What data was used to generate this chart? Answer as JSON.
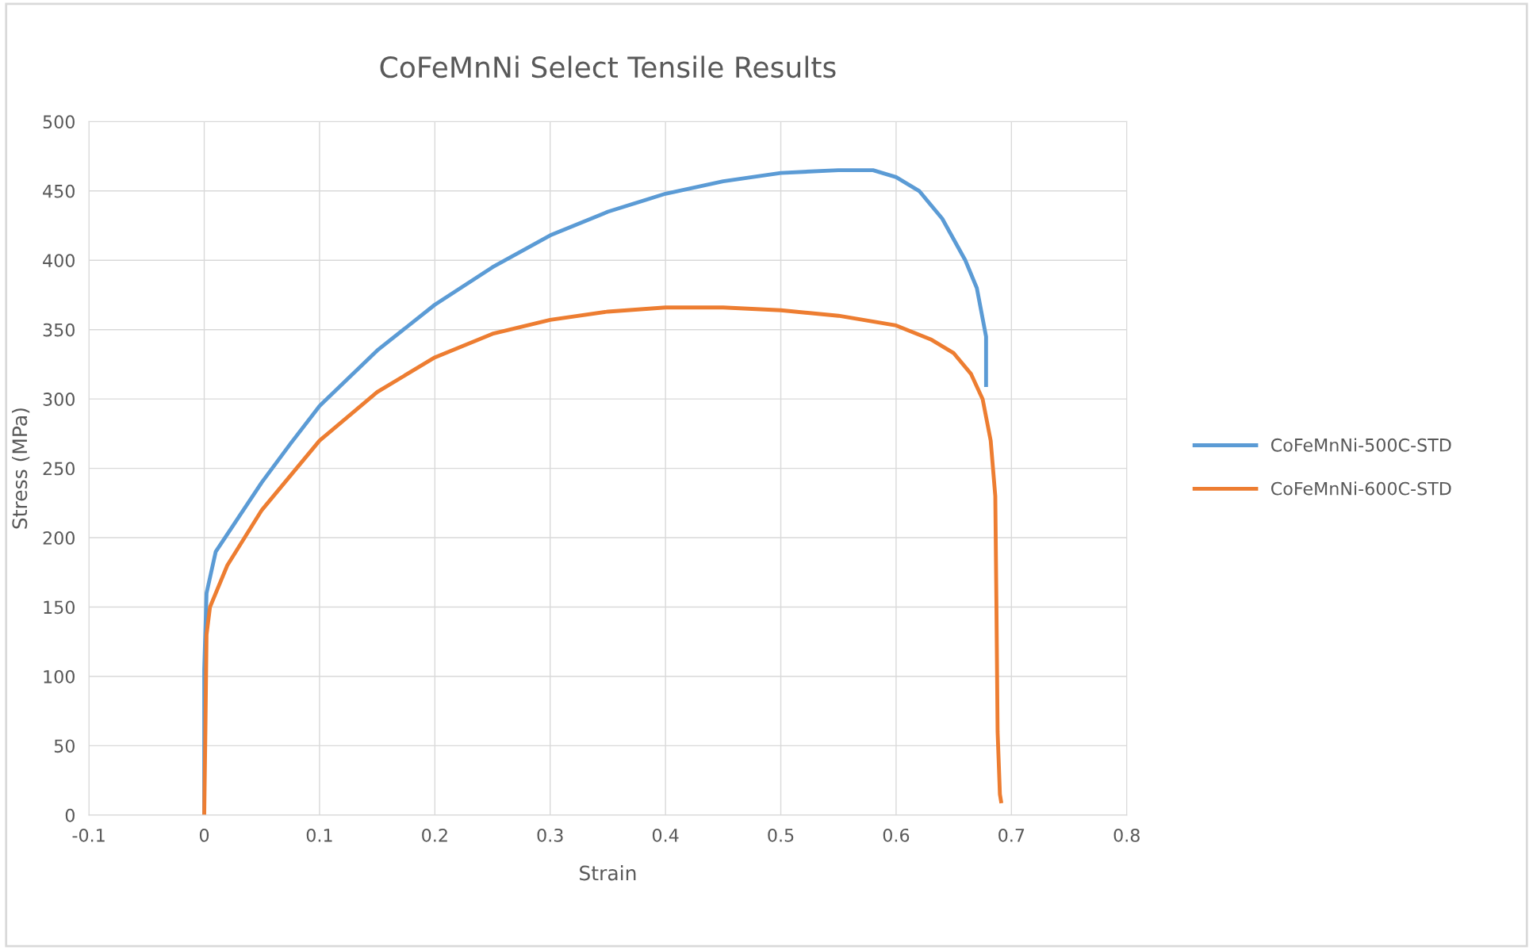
{
  "chart_data": {
    "type": "line",
    "title": "CoFeMnNi Select Tensile Results",
    "xlabel": "Strain",
    "ylabel": "Stress (MPa)",
    "xlim": [
      -0.1,
      0.8
    ],
    "xticks": [
      -0.1,
      0,
      0.1,
      0.2,
      0.3,
      0.4,
      0.5,
      0.6,
      0.7,
      0.8
    ],
    "ylim": [
      0,
      500
    ],
    "yticks": [
      0,
      50,
      100,
      150,
      200,
      250,
      300,
      350,
      400,
      450,
      500
    ],
    "grid": true,
    "legend": "right",
    "marker": "none",
    "line_style": "solid",
    "series": [
      {
        "name": "CoFeMnNi-500C-STD",
        "color": "#5b9bd5",
        "x": [
          0,
          0,
          0.002,
          0.01,
          0.03,
          0.05,
          0.075,
          0.1,
          0.15,
          0.2,
          0.25,
          0.3,
          0.35,
          0.4,
          0.45,
          0.5,
          0.55,
          0.58,
          0.6,
          0.62,
          0.64,
          0.66,
          0.67,
          0.678,
          0.678
        ],
        "values": [
          0,
          105,
          160,
          190,
          215,
          240,
          268,
          295,
          335,
          368,
          395,
          418,
          435,
          448,
          457,
          463,
          465,
          465,
          460,
          450,
          430,
          400,
          380,
          345,
          310
        ]
      },
      {
        "name": "CoFeMnNi-600C-STD",
        "color": "#ed7d31",
        "x": [
          0,
          0.001,
          0.002,
          0.005,
          0.02,
          0.05,
          0.1,
          0.15,
          0.2,
          0.25,
          0.3,
          0.35,
          0.4,
          0.45,
          0.5,
          0.55,
          0.6,
          0.63,
          0.65,
          0.665,
          0.675,
          0.682,
          0.686,
          0.687,
          0.688,
          0.69,
          0.691
        ],
        "values": [
          0,
          60,
          130,
          150,
          180,
          220,
          270,
          305,
          330,
          347,
          357,
          363,
          366,
          366,
          364,
          360,
          353,
          343,
          333,
          318,
          300,
          270,
          230,
          150,
          60,
          15,
          10
        ]
      }
    ]
  }
}
